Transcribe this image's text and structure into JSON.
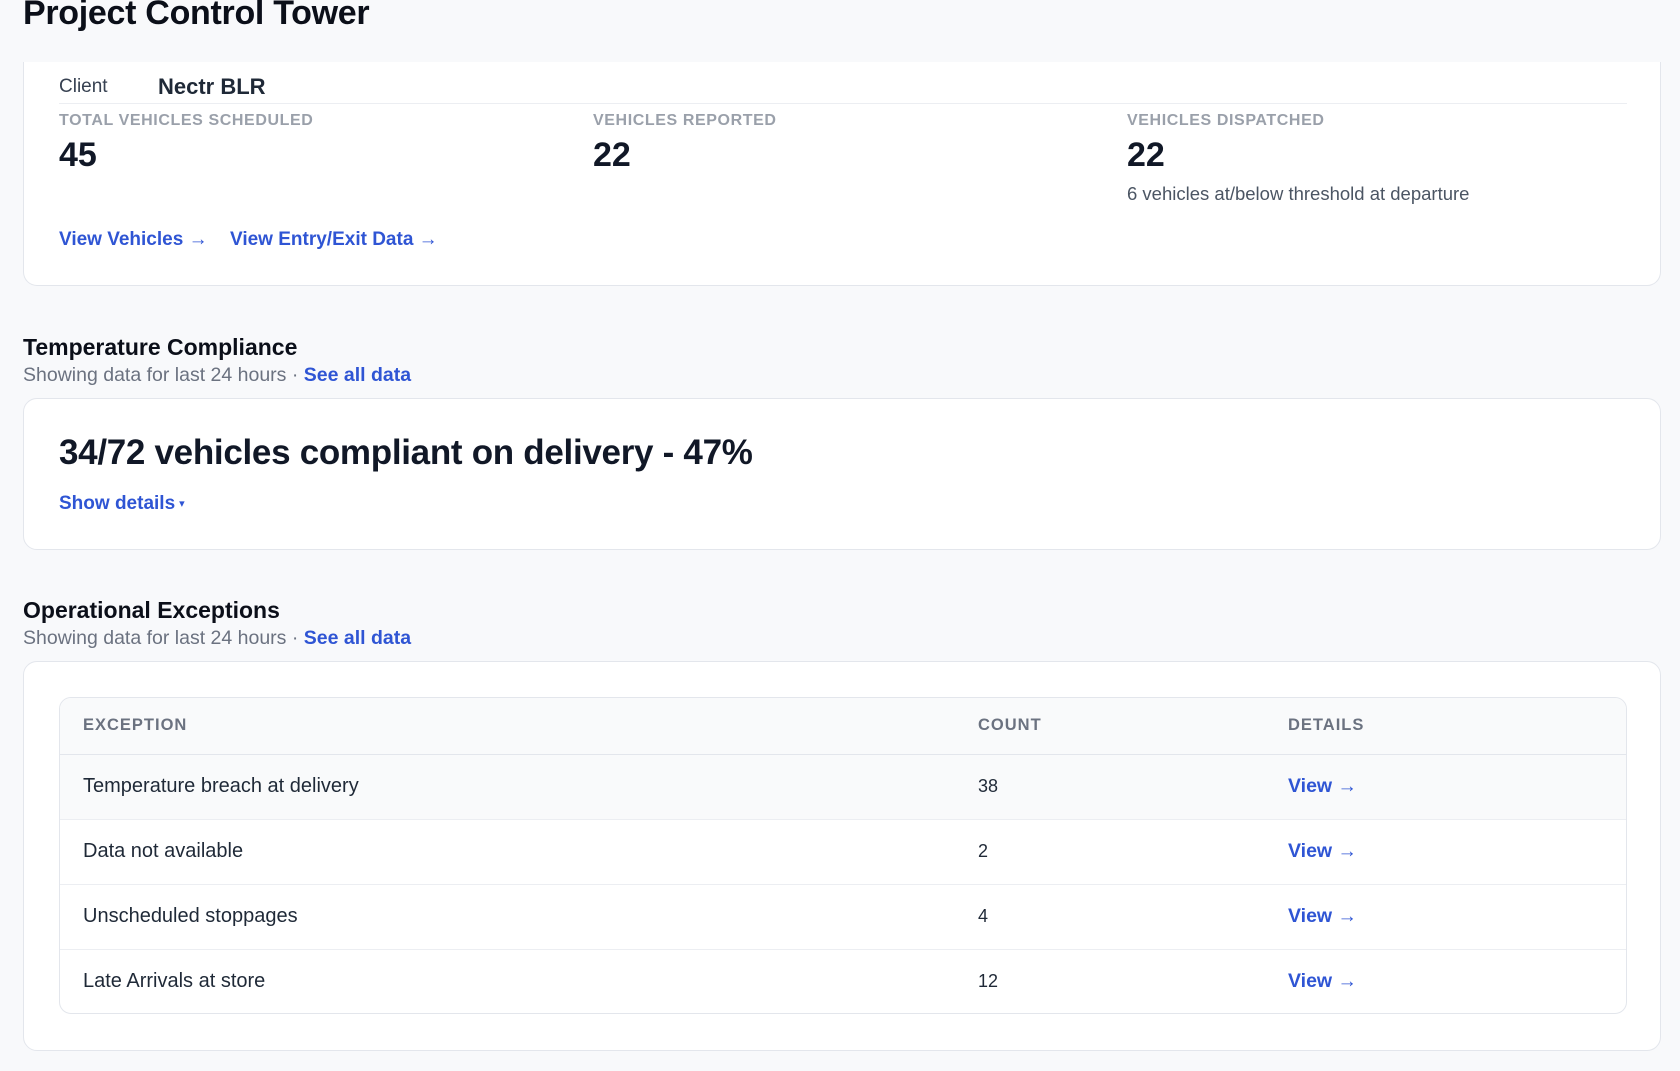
{
  "page": {
    "title": "Project Control Tower"
  },
  "summary": {
    "client_label": "Client",
    "client_value": "Nectr BLR",
    "stats": [
      {
        "label": "TOTAL VEHICLES SCHEDULED",
        "value": "45"
      },
      {
        "label": "VEHICLES REPORTED",
        "value": "22"
      },
      {
        "label": "VEHICLES DISPATCHED",
        "value": "22",
        "note": "6 vehicles at/below threshold at departure"
      }
    ],
    "links": {
      "view_vehicles": "View Vehicles →",
      "view_entry_exit": "View Entry/Exit Data →"
    }
  },
  "compliance": {
    "title": "Temperature Compliance",
    "subtitle": "Showing data for last 24 hours ·",
    "see_all": "See all data",
    "headline": "34/72 vehicles compliant on delivery - 47%",
    "show_details": "Show details",
    "caret": "▾"
  },
  "exceptions": {
    "title": "Operational Exceptions",
    "subtitle": "Showing data for last 24 hours ·",
    "see_all": "See all data",
    "columns": {
      "exception": "EXCEPTION",
      "count": "COUNT",
      "details": "DETAILS"
    },
    "rows": [
      {
        "exception": "Temperature breach at delivery",
        "count": "38",
        "details": "View →"
      },
      {
        "exception": "Data not available",
        "count": "2",
        "details": "View →"
      },
      {
        "exception": "Unscheduled stoppages",
        "count": "4",
        "details": "View →"
      },
      {
        "exception": "Late Arrivals at store",
        "count": "12",
        "details": "View →"
      }
    ]
  },
  "colors": {
    "accent": "#2f55d4",
    "text": "#111827",
    "muted": "#6b7280",
    "border": "#e3e6ec"
  }
}
